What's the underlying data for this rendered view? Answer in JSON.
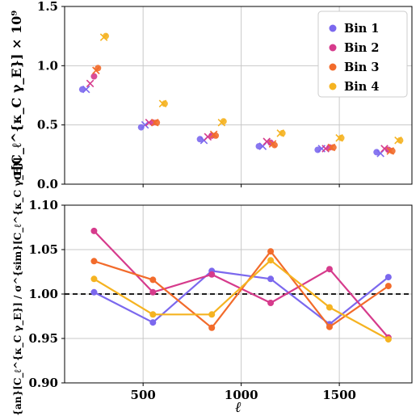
{
  "chart_data": [
    {
      "type": "scatter",
      "panel": "top",
      "ylabel": "σ[C_ℓ^{κ_C γ_E}] × 10⁹",
      "ylim": [
        0.0,
        1.5
      ],
      "yticks": [
        "0.0",
        "0.5",
        "1.0",
        "1.5"
      ],
      "xlim": [
        100,
        1870
      ],
      "grid": true,
      "legend": {
        "placement": "top-right",
        "entries": [
          "Bin 1",
          "Bin 2",
          "Bin 3",
          "Bin 4"
        ]
      },
      "markers": {
        "analytic": "circle",
        "simulation": "x"
      },
      "series": [
        {
          "name": "Bin 1",
          "color": "#7b68ee",
          "analytic": {
            "x": [
              190,
              490,
              790,
              1090,
              1390,
              1690
            ],
            "y": [
              0.8,
              0.48,
              0.38,
              0.32,
              0.29,
              0.27
            ]
          },
          "simulation": {
            "x": [
              210,
              510,
              810,
              1110,
              1410,
              1710
            ],
            "y": [
              0.8,
              0.5,
              0.37,
              0.32,
              0.3,
              0.26
            ]
          }
        },
        {
          "name": "Bin 2",
          "color": "#d63b8c",
          "analytic": {
            "x": [
              250,
              550,
              850,
              1150,
              1450,
              1750
            ],
            "y": [
              0.91,
              0.52,
              0.41,
              0.35,
              0.31,
              0.29
            ]
          },
          "simulation": {
            "x": [
              230,
              530,
              830,
              1130,
              1430,
              1730
            ],
            "y": [
              0.85,
              0.52,
              0.4,
              0.36,
              0.3,
              0.3
            ]
          }
        },
        {
          "name": "Bin 3",
          "color": "#f26b2b",
          "analytic": {
            "x": [
              270,
              570,
              870,
              1170,
              1470,
              1770
            ],
            "y": [
              0.98,
              0.52,
              0.41,
              0.33,
              0.31,
              0.28
            ]
          },
          "simulation": {
            "x": [
              260,
              560,
              860,
              1160,
              1460,
              1760
            ],
            "y": [
              0.96,
              0.52,
              0.42,
              0.34,
              0.31,
              0.28
            ]
          }
        },
        {
          "name": "Bin 4",
          "color": "#f5b321",
          "analytic": {
            "x": [
              310,
              610,
              910,
              1210,
              1510,
              1810
            ],
            "y": [
              1.25,
              0.68,
              0.53,
              0.43,
              0.39,
              0.37
            ]
          },
          "simulation": {
            "x": [
              300,
              600,
              900,
              1200,
              1500,
              1800
            ],
            "y": [
              1.24,
              0.68,
              0.52,
              0.43,
              0.39,
              0.37
            ]
          }
        }
      ]
    },
    {
      "type": "line",
      "panel": "bottom",
      "xlabel": "ℓ",
      "ylabel": "σ^{an}[C_ℓ^{κ_C γ_E}] / σ^{sim}[C_ℓ^{κ_C γ_E}]",
      "ylim": [
        0.9,
        1.1
      ],
      "yticks": [
        "0.90",
        "0.95",
        "1.00",
        "1.05",
        "1.10"
      ],
      "xlim": [
        100,
        1870
      ],
      "xticks": [
        "500",
        "1000",
        "1500"
      ],
      "grid": true,
      "reference_line": {
        "y": 1.0,
        "style": "dashed",
        "color": "#000000"
      },
      "x": [
        250,
        550,
        850,
        1150,
        1450,
        1750
      ],
      "series": [
        {
          "name": "Bin 1",
          "color": "#7b68ee",
          "values": [
            1.002,
            0.968,
            1.026,
            1.017,
            0.966,
            1.019
          ]
        },
        {
          "name": "Bin 2",
          "color": "#d63b8c",
          "values": [
            1.071,
            1.002,
            1.022,
            0.99,
            1.028,
            0.951
          ]
        },
        {
          "name": "Bin 3",
          "color": "#f26b2b",
          "values": [
            1.037,
            1.016,
            0.962,
            1.048,
            0.963,
            1.009
          ]
        },
        {
          "name": "Bin 4",
          "color": "#f5b321",
          "values": [
            1.017,
            0.977,
            0.977,
            1.038,
            0.985,
            0.949
          ]
        }
      ]
    }
  ]
}
